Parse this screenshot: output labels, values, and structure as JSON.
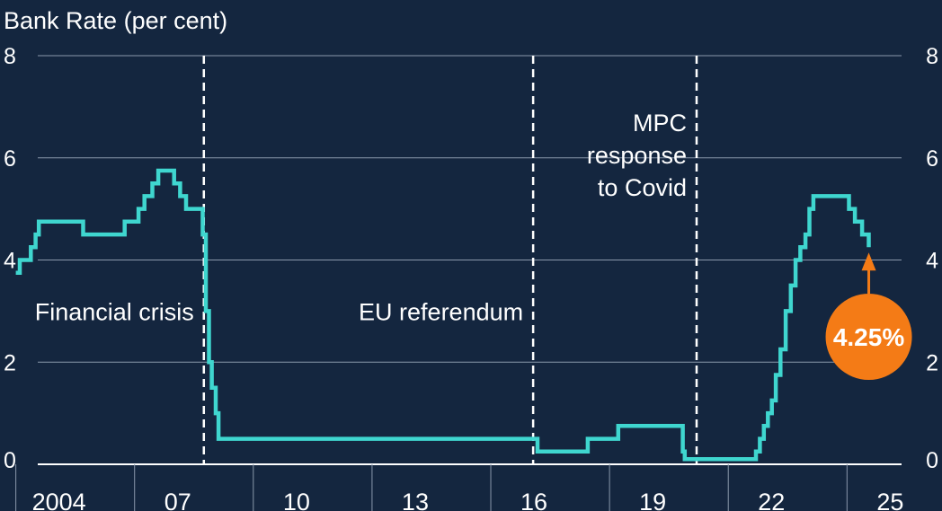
{
  "colors": {
    "background": "#14263f",
    "line": "#3fd6cf",
    "grid": "#8a98ab",
    "axis": "#ffffff",
    "callout": "#f47b16"
  },
  "chart_data": {
    "type": "line",
    "title": "Bank Rate (per cent)",
    "xlabel": "",
    "ylabel": "",
    "xlim": [
      2002.6,
      2026.4
    ],
    "ylim": [
      0,
      8
    ],
    "y_ticks": [
      "0",
      "2",
      "4",
      "6",
      "8"
    ],
    "x_ticks": [
      {
        "label": "2004",
        "at": 2004
      },
      {
        "label": "07",
        "at": 2007
      },
      {
        "label": "10",
        "at": 2010
      },
      {
        "label": "13",
        "at": 2013
      },
      {
        "label": "16",
        "at": 2016
      },
      {
        "label": "19",
        "at": 2019
      },
      {
        "label": "22",
        "at": 2022
      },
      {
        "label": "25",
        "at": 2025
      }
    ],
    "x_minor_ticks": [
      2003,
      2006,
      2009,
      2012,
      2015,
      2018,
      2021,
      2024
    ],
    "grid": true,
    "series": [
      {
        "name": "",
        "step": true,
        "points": [
          [
            2003.0,
            3.75
          ],
          [
            2003.1,
            4.0
          ],
          [
            2003.3,
            4.0
          ],
          [
            2003.38,
            4.25
          ],
          [
            2003.5,
            4.5
          ],
          [
            2003.58,
            4.75
          ],
          [
            2004.6,
            4.75
          ],
          [
            2004.7,
            4.5
          ],
          [
            2005.68,
            4.5
          ],
          [
            2005.75,
            4.75
          ],
          [
            2006.0,
            4.75
          ],
          [
            2006.1,
            5.0
          ],
          [
            2006.25,
            5.25
          ],
          [
            2006.45,
            5.5
          ],
          [
            2006.6,
            5.75
          ],
          [
            2006.9,
            5.75
          ],
          [
            2007.0,
            5.5
          ],
          [
            2007.15,
            5.25
          ],
          [
            2007.3,
            5.0
          ],
          [
            2007.65,
            5.0
          ],
          [
            2007.72,
            4.5
          ],
          [
            2007.8,
            3.0
          ],
          [
            2007.88,
            2.0
          ],
          [
            2007.95,
            1.5
          ],
          [
            2008.05,
            1.0
          ],
          [
            2008.12,
            0.5
          ],
          [
            2016.1,
            0.5
          ],
          [
            2016.18,
            0.25
          ],
          [
            2017.4,
            0.25
          ],
          [
            2017.45,
            0.5
          ],
          [
            2018.15,
            0.5
          ],
          [
            2018.22,
            0.75
          ],
          [
            2019.8,
            0.75
          ],
          [
            2019.85,
            0.25
          ],
          [
            2019.9,
            0.1
          ],
          [
            2021.6,
            0.1
          ],
          [
            2021.7,
            0.25
          ],
          [
            2021.8,
            0.5
          ],
          [
            2021.9,
            0.75
          ],
          [
            2022.0,
            1.0
          ],
          [
            2022.1,
            1.25
          ],
          [
            2022.2,
            1.75
          ],
          [
            2022.32,
            2.25
          ],
          [
            2022.45,
            3.0
          ],
          [
            2022.58,
            3.5
          ],
          [
            2022.7,
            4.0
          ],
          [
            2022.82,
            4.25
          ],
          [
            2022.95,
            4.5
          ],
          [
            2023.05,
            5.0
          ],
          [
            2023.15,
            5.25
          ],
          [
            2023.95,
            5.25
          ],
          [
            2024.05,
            5.0
          ],
          [
            2024.2,
            4.75
          ],
          [
            2024.38,
            4.5
          ],
          [
            2024.55,
            4.25
          ]
        ]
      }
    ],
    "event_lines": [
      {
        "x": 2007.75,
        "label": "Financial crisis",
        "lines": [
          "Financial crisis"
        ],
        "label_y": 3.0
      },
      {
        "x": 2016.07,
        "label": "EU referendum",
        "lines": [
          "EU referendum"
        ],
        "label_y": 3.0
      },
      {
        "x": 2020.2,
        "label": "MPC response to Covid",
        "lines": [
          "MPC",
          "response",
          "to Covid"
        ],
        "label_y": 6.7
      }
    ],
    "annotation": {
      "text": "4.25%",
      "x": 2024.55,
      "y": 4.25
    }
  }
}
